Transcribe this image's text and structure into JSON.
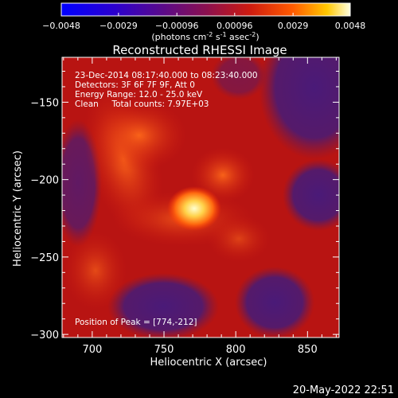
{
  "colorbar": {
    "ticks": [
      "-0.0048",
      "-0.0029",
      "-0.00096",
      "0.00096",
      "0.0029",
      "0.0048"
    ],
    "unit_main": "(photons cm",
    "unit_exp1": "-2",
    "unit_mid": " s",
    "unit_exp2": "-1",
    "unit_end": " asec",
    "unit_exp3": "-2",
    "unit_close": ")"
  },
  "info": {
    "line1": "23-Dec-2014 08:17:40.000 to 08:23:40.000",
    "line2": "Detectors: 3F 6F 7F 9F, Att 0",
    "line3": "Energy Range: 12.0 - 25.0 keV",
    "line4": "Clean     Total counts: 7.97E+03",
    "peak": "Position of Peak = [774,-212]"
  },
  "footer": {
    "timestamp": "20-May-2022 22:51"
  },
  "chart_data": {
    "type": "heatmap",
    "title": "Reconstructed RHESSI Image",
    "xlabel": "Heliocentric X (arcsec)",
    "ylabel": "Heliocentric Y (arcsec)",
    "xlim": [
      679,
      872
    ],
    "ylim": [
      -302,
      -121
    ],
    "xticks": [
      700,
      750,
      800,
      850
    ],
    "yticks": [
      -150,
      -200,
      -250,
      -300
    ],
    "colorbar_range": [
      -0.0048,
      0.0048
    ],
    "peak": [
      774,
      -212
    ]
  }
}
